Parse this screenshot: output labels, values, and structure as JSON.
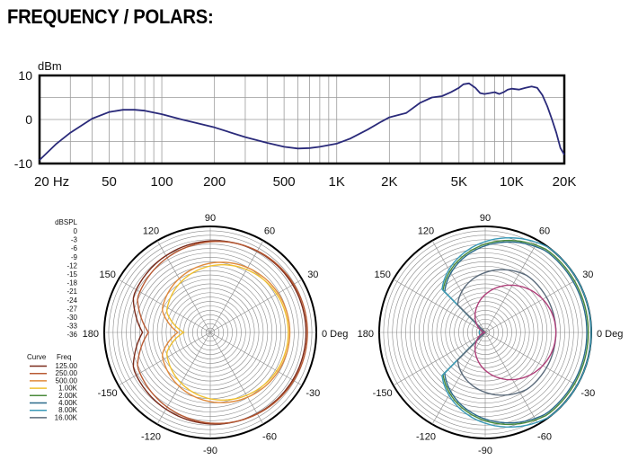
{
  "title": "FREQUENCY / POLARS:",
  "chart_data": [
    {
      "type": "line",
      "ylabel": "dBm",
      "ylim": [
        -10,
        10
      ],
      "xlim": [
        20,
        20000
      ],
      "xscale": "log",
      "y_ticks": [
        "10",
        "0",
        "-10"
      ],
      "x_ticks": [
        {
          "v": 20,
          "label": "20 Hz"
        },
        {
          "v": 50,
          "label": "50"
        },
        {
          "v": 100,
          "label": "100"
        },
        {
          "v": 200,
          "label": "200"
        },
        {
          "v": 500,
          "label": "500"
        },
        {
          "v": 1000,
          "label": "1K"
        },
        {
          "v": 2000,
          "label": "2K"
        },
        {
          "v": 5000,
          "label": "5K"
        },
        {
          "v": 10000,
          "label": "10K"
        },
        {
          "v": 20000,
          "label": "20K"
        }
      ],
      "grid": true,
      "line_color": "#2a2a7a",
      "series": [
        {
          "x": [
            20,
            25,
            30,
            40,
            50,
            60,
            70,
            80,
            100,
            130,
            150,
            200,
            300,
            400,
            500,
            600,
            700,
            800,
            1000,
            1200,
            1500,
            1800,
            2000,
            2500,
            3000,
            3500,
            4000,
            4500,
            5000,
            5300,
            5700,
            6200,
            6600,
            7000,
            7500,
            8000,
            8500,
            9000,
            9500,
            10000,
            11000,
            12000,
            13000,
            14000,
            15000,
            16000,
            17000,
            18000,
            19000,
            20000
          ],
          "y": [
            -9.2,
            -5.5,
            -3.0,
            0.2,
            1.7,
            2.2,
            2.2,
            2.0,
            1.2,
            0.0,
            -0.6,
            -1.8,
            -4.0,
            -5.3,
            -6.2,
            -6.6,
            -6.5,
            -6.2,
            -5.5,
            -4.3,
            -2.3,
            -0.5,
            0.5,
            1.5,
            3.8,
            5.0,
            5.3,
            6.2,
            7.2,
            8.0,
            8.2,
            7.2,
            6.0,
            5.8,
            6.0,
            6.2,
            5.8,
            6.2,
            6.8,
            7.0,
            6.8,
            7.2,
            7.5,
            7.2,
            5.5,
            3.0,
            0.0,
            -3.0,
            -6.5,
            -8.0
          ]
        }
      ]
    },
    {
      "type": "polar",
      "radial_label": "dBSPL",
      "radial_ticks": [
        "0",
        "-3",
        "-6",
        "-9",
        "-12",
        "-15",
        "-18",
        "-21",
        "-24",
        "-27",
        "-30",
        "-33",
        "-36"
      ],
      "angle_labels": [
        {
          "deg": 90,
          "label": "90"
        },
        {
          "deg": 60,
          "label": "60"
        },
        {
          "deg": 30,
          "label": "30"
        },
        {
          "deg": 0,
          "label": "0 Deg"
        },
        {
          "deg": -30,
          "label": "-30"
        },
        {
          "deg": -60,
          "label": "-60"
        },
        {
          "deg": -90,
          "label": "-90"
        },
        {
          "deg": -120,
          "label": "-120"
        },
        {
          "deg": -150,
          "label": "-150"
        },
        {
          "deg": 180,
          "label": "180"
        },
        {
          "deg": 150,
          "label": "150"
        },
        {
          "deg": 120,
          "label": "120"
        }
      ],
      "legend": {
        "header_curve": "Curve",
        "header_freq": "Freq"
      },
      "series": [
        {
          "name": "125.00",
          "color": "#7a2a1a",
          "shape": "omni",
          "rmax": -3.5,
          "rback": -8
        },
        {
          "name": "250.00",
          "color": "#b85a33",
          "shape": "omni",
          "rmax": -3,
          "rback": -10
        },
        {
          "name": "500.00",
          "color": "#e08a3c",
          "shape": "omni",
          "rmax": -9,
          "rback": -20
        },
        {
          "name": "1.00K",
          "color": "#f0c030",
          "shape": "omni",
          "rmax": -9.5,
          "rback": -22
        }
      ]
    },
    {
      "type": "polar",
      "angle_labels": [
        {
          "deg": 90,
          "label": "90"
        },
        {
          "deg": 60,
          "label": "60"
        },
        {
          "deg": 30,
          "label": "30"
        },
        {
          "deg": 0,
          "label": "0 Deg"
        },
        {
          "deg": -30,
          "label": "-30"
        },
        {
          "deg": -60,
          "label": "-60"
        },
        {
          "deg": -90,
          "label": "-90"
        },
        {
          "deg": -120,
          "label": "-120"
        },
        {
          "deg": -150,
          "label": "-150"
        },
        {
          "deg": 180,
          "label": "180"
        },
        {
          "deg": 150,
          "label": "150"
        },
        {
          "deg": 120,
          "label": "120"
        }
      ],
      "series": [
        {
          "name": "2.00K",
          "color": "#4a8a3a",
          "shape": "cardioid",
          "rmax": -1,
          "rback": -34
        },
        {
          "name": "4.00K",
          "color": "#2a6a8a",
          "shape": "cardioid",
          "rmax": -1.5,
          "rback": -35
        },
        {
          "name": "8.00K",
          "color": "#3a9ab8",
          "shape": "cardioid",
          "rmax": 0,
          "rback": -34
        },
        {
          "name": "16.00K",
          "color": "#5a6a7a",
          "shape": "cardioid",
          "rmax": -12,
          "rback": -36
        }
      ]
    }
  ],
  "pink_curve": {
    "color": "#b0407a",
    "rmax": -12,
    "rback": -36
  }
}
